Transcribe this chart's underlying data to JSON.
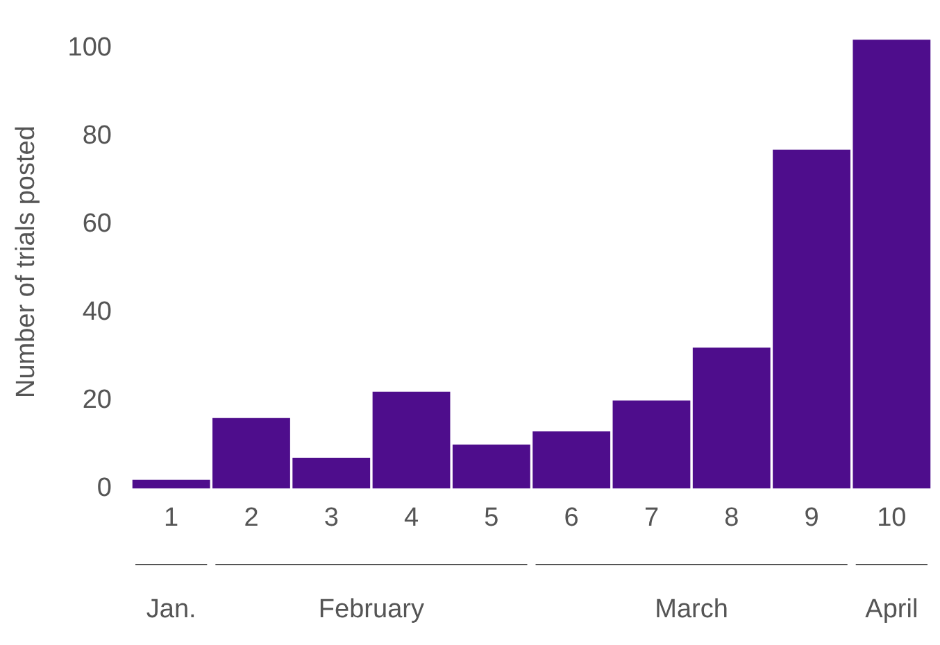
{
  "chart_data": {
    "type": "bar",
    "ylabel": "Number of trials posted",
    "categories": [
      "1",
      "2",
      "3",
      "4",
      "5",
      "6",
      "7",
      "8",
      "9",
      "10"
    ],
    "values": [
      2,
      16,
      7,
      22,
      10,
      13,
      20,
      32,
      77,
      102
    ],
    "color": "#4e0d8c",
    "ylim": [
      0,
      103
    ],
    "yticks": [
      0,
      20,
      40,
      60,
      80,
      100
    ],
    "grid": false,
    "legend": false,
    "annotations": [
      "Jan.",
      "February",
      "March",
      "April"
    ]
  }
}
